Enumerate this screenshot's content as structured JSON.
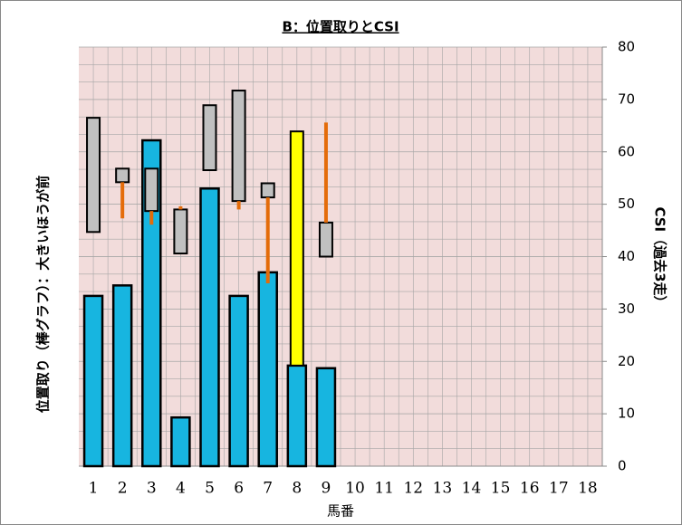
{
  "chart_data": {
    "type": "range-bar",
    "title": "B：位置取りとCSI",
    "y_label": "位置取り（棒グラフ）：大きいほうが前",
    "y2_label": "CSI（過去3走）",
    "x_label": "馬番",
    "categories": [
      "1",
      "2",
      "3",
      "4",
      "5",
      "6",
      "7",
      "8",
      "9",
      "10",
      "11",
      "12",
      "13",
      "14",
      "15",
      "16",
      "17",
      "18"
    ],
    "bars": [
      32.5,
      34.5,
      62.2,
      9.3,
      53,
      32.5,
      37,
      19.2,
      18.7,
      0,
      0,
      0,
      0,
      0,
      0,
      0,
      0,
      0
    ],
    "box_high": [
      66.5,
      56.8,
      56.8,
      49,
      68.9,
      71.7,
      54,
      63.9,
      46.5,
      null,
      null,
      null,
      null,
      null,
      null,
      null,
      null,
      null
    ],
    "box_low": [
      44.7,
      54.2,
      48.7,
      40.6,
      56.5,
      50.6,
      51.3,
      19.2,
      40,
      null,
      null,
      null,
      null,
      null,
      null,
      null,
      null,
      null
    ],
    "whisker_high": [
      null,
      54.2,
      48.7,
      49.6,
      null,
      50.6,
      51.3,
      null,
      65.6,
      null,
      null,
      null,
      null,
      null,
      null,
      null,
      null,
      null
    ],
    "whisker_low": [
      null,
      47.3,
      46.1,
      49,
      null,
      49,
      34.9,
      null,
      46.5,
      null,
      null,
      null,
      null,
      null,
      null,
      null,
      null,
      null
    ],
    "bar_color": "#17b5e0",
    "box_colors": [
      "#c0c0c0",
      "#c0c0c0",
      "#c0c0c0",
      "#c0c0c0",
      "#c0c0c0",
      "#c0c0c0",
      "#c0c0c0",
      "#ffff00",
      "#c0c0c0",
      "#c0c0c0",
      "#c0c0c0",
      "#c0c0c0",
      "#c0c0c0",
      "#c0c0c0",
      "#c0c0c0",
      "#c0c0c0",
      "#c0c0c0",
      "#c0c0c0"
    ],
    "whisker_color": "#e46c0a",
    "ylim": [
      0,
      80
    ],
    "yticks": [
      0,
      10,
      20,
      30,
      40,
      50,
      60,
      70,
      80
    ],
    "grid": true
  }
}
